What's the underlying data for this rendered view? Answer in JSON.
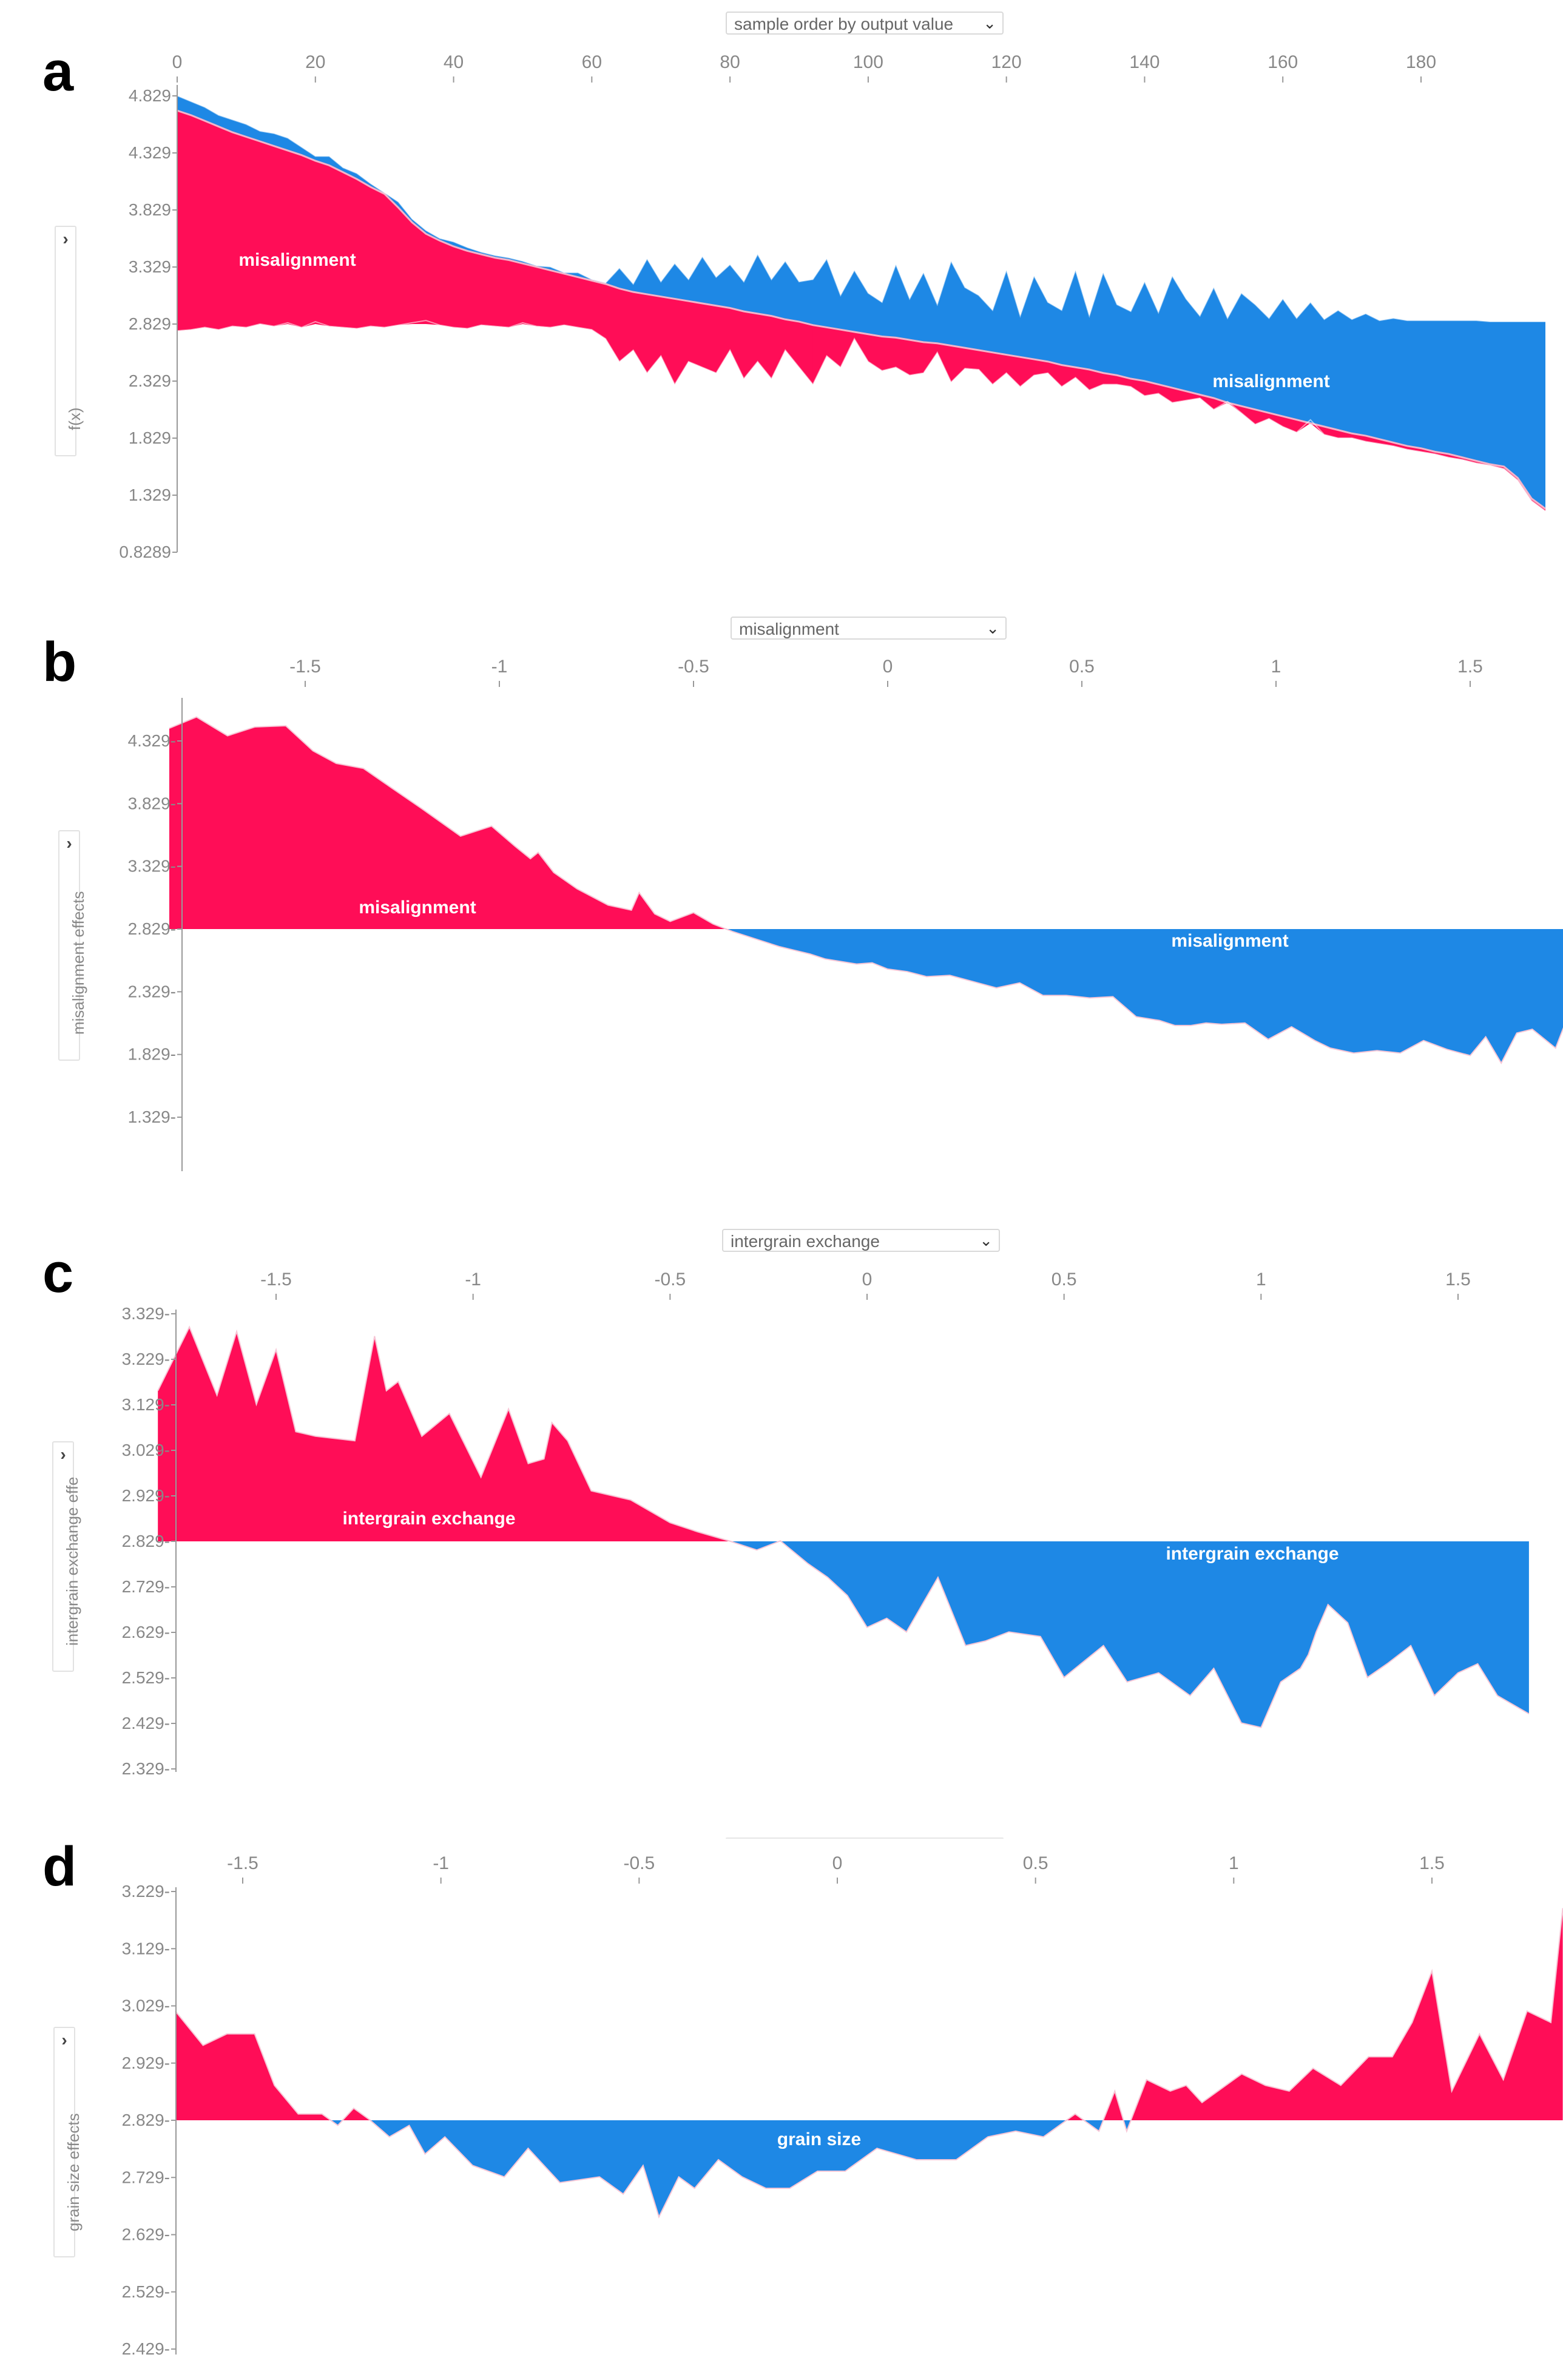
{
  "panels": [
    {
      "letter": "a",
      "dropdown": "sample order by output value",
      "ylabel": "f(x)"
    },
    {
      "letter": "b",
      "dropdown": "misalignment",
      "ylabel": "misalignment effects"
    },
    {
      "letter": "c",
      "dropdown": "intergrain exchange",
      "ylabel": "intergrain exchange effe"
    },
    {
      "letter": "d",
      "dropdown": "",
      "ylabel": "grain size effects"
    }
  ],
  "colors": {
    "positive": "#ff0d57",
    "negative": "#1e88e5",
    "axis": "#999999",
    "tick_text": "#888888"
  },
  "icons": {
    "expand": "chevron-right-icon",
    "dropdown": "chevron-down-icon"
  },
  "chart_data": [
    {
      "type": "area",
      "x": [
        0,
        2,
        4,
        6,
        8,
        10,
        12,
        14,
        16,
        18,
        20,
        22,
        24,
        26,
        28,
        30,
        32,
        34,
        36,
        38,
        40,
        42,
        44,
        46,
        48,
        50,
        52,
        54,
        56,
        58,
        60,
        62,
        64,
        66,
        68,
        70,
        72,
        74,
        76,
        78,
        80,
        82,
        84,
        86,
        88,
        90,
        92,
        94,
        96,
        98,
        100,
        102,
        104,
        106,
        108,
        110,
        112,
        114,
        116,
        118,
        120,
        122,
        124,
        126,
        128,
        130,
        132,
        134,
        136,
        138,
        140,
        142,
        144,
        146,
        148,
        150,
        152,
        154,
        156,
        158,
        160,
        162,
        164,
        166,
        168,
        170,
        172,
        174,
        176,
        178,
        180,
        182,
        184,
        186,
        188,
        190,
        192,
        194,
        196,
        198
      ],
      "output_values": [
        4.7,
        4.66,
        4.61,
        4.56,
        4.51,
        4.47,
        4.43,
        4.39,
        4.35,
        4.31,
        4.26,
        4.22,
        4.16,
        4.1,
        4.03,
        3.97,
        3.85,
        3.72,
        3.62,
        3.56,
        3.51,
        3.47,
        3.44,
        3.41,
        3.39,
        3.36,
        3.33,
        3.3,
        3.27,
        3.24,
        3.21,
        3.18,
        3.14,
        3.11,
        3.09,
        3.07,
        3.05,
        3.03,
        3.01,
        2.99,
        2.97,
        2.94,
        2.92,
        2.9,
        2.87,
        2.85,
        2.82,
        2.8,
        2.78,
        2.76,
        2.74,
        2.72,
        2.71,
        2.69,
        2.67,
        2.66,
        2.64,
        2.62,
        2.6,
        2.58,
        2.56,
        2.54,
        2.52,
        2.5,
        2.47,
        2.45,
        2.43,
        2.4,
        2.38,
        2.35,
        2.33,
        2.3,
        2.27,
        2.24,
        2.21,
        2.18,
        2.14,
        2.11,
        2.08,
        2.05,
        2.02,
        1.99,
        1.96,
        1.93,
        1.9,
        1.87,
        1.85,
        1.82,
        1.79,
        1.76,
        1.74,
        1.71,
        1.69,
        1.66,
        1.63,
        1.6,
        1.58,
        1.48,
        1.3,
        1.21
      ],
      "base_value": 2.829,
      "upper_envelope": [
        4.83,
        4.78,
        4.73,
        4.66,
        4.62,
        4.58,
        4.52,
        4.5,
        4.46,
        4.38,
        4.3,
        4.3,
        4.2,
        4.15,
        4.06,
        3.98,
        3.9,
        3.75,
        3.65,
        3.58,
        3.55,
        3.5,
        3.46,
        3.43,
        3.41,
        3.38,
        3.34,
        3.33,
        3.28,
        3.28,
        3.22,
        3.19,
        3.32,
        3.18,
        3.4,
        3.2,
        3.36,
        3.22,
        3.42,
        3.24,
        3.35,
        3.2,
        3.44,
        3.22,
        3.38,
        3.2,
        3.22,
        3.4,
        3.08,
        3.3,
        3.1,
        3.02,
        3.35,
        3.05,
        3.28,
        3.0,
        3.38,
        3.15,
        3.08,
        2.95,
        3.3,
        2.9,
        3.25,
        3.02,
        2.95,
        3.3,
        2.9,
        3.28,
        3.0,
        2.94,
        3.2,
        2.93,
        3.25,
        3.05,
        2.9,
        3.15,
        2.88,
        3.1,
        3.0,
        2.88,
        3.05,
        2.88,
        3.02,
        2.87,
        2.95,
        2.87,
        2.92,
        2.86,
        2.88,
        2.86,
        2.86,
        2.86,
        2.86,
        2.86,
        2.86,
        2.85,
        2.85,
        2.85,
        2.85,
        2.85
      ],
      "lower_envelope": [
        2.77,
        2.78,
        2.8,
        2.78,
        2.81,
        2.8,
        2.83,
        2.81,
        2.84,
        2.8,
        2.85,
        2.81,
        2.8,
        2.79,
        2.81,
        2.8,
        2.82,
        2.84,
        2.86,
        2.82,
        2.8,
        2.79,
        2.82,
        2.81,
        2.8,
        2.84,
        2.81,
        2.8,
        2.82,
        2.8,
        2.78,
        2.7,
        2.5,
        2.6,
        2.4,
        2.55,
        2.3,
        2.5,
        2.45,
        2.4,
        2.6,
        2.35,
        2.5,
        2.35,
        2.6,
        2.45,
        2.3,
        2.55,
        2.45,
        2.7,
        2.5,
        2.42,
        2.45,
        2.38,
        2.4,
        2.58,
        2.32,
        2.44,
        2.43,
        2.3,
        2.4,
        2.28,
        2.38,
        2.4,
        2.28,
        2.36,
        2.25,
        2.3,
        2.3,
        2.28,
        2.2,
        2.22,
        2.14,
        2.16,
        2.18,
        2.08,
        2.15,
        2.05,
        1.95,
        2.0,
        1.93,
        1.88,
        1.99,
        1.86,
        1.83,
        1.83,
        1.8,
        1.78,
        1.76,
        1.73,
        1.71,
        1.69,
        1.66,
        1.64,
        1.61,
        1.59,
        1.56,
        1.46,
        1.28,
        1.19
      ],
      "series_labels": [
        {
          "text": "misalignment"
        },
        {
          "text": "misalignment"
        }
      ],
      "xlabel": "",
      "ylabel": "f(x)",
      "xlim": [
        -2,
        199
      ],
      "ylim": [
        0.8289,
        4.929
      ],
      "xticks": [
        0,
        20,
        40,
        60,
        80,
        100,
        120,
        140,
        160,
        180
      ],
      "yticks": [
        4.829,
        4.329,
        3.829,
        3.329,
        2.829,
        2.329,
        1.829,
        1.329,
        0.8289
      ],
      "ytick_labels": [
        "4.829",
        "4.329",
        "3.829",
        "3.329",
        "2.829",
        "2.329",
        "1.829",
        "1.329",
        "0.8289"
      ]
    },
    {
      "type": "area",
      "x": [
        -1.85,
        -1.78,
        -1.7,
        -1.63,
        -1.55,
        -1.48,
        -1.42,
        -1.35,
        -1.28,
        -1.2,
        -1.1,
        -1.02,
        -0.96,
        -0.92,
        -0.9,
        -0.86,
        -0.8,
        -0.72,
        -0.66,
        -0.64,
        -0.6,
        -0.56,
        -0.5,
        -0.45,
        -0.4,
        -0.36,
        -0.32,
        -0.28,
        -0.24,
        -0.2,
        -0.16,
        -0.12,
        -0.08,
        -0.04,
        0.0,
        0.05,
        0.1,
        0.16,
        0.22,
        0.28,
        0.34,
        0.4,
        0.46,
        0.52,
        0.58,
        0.64,
        0.7,
        0.74,
        0.78,
        0.82,
        0.86,
        0.92,
        0.98,
        1.04,
        1.1,
        1.14,
        1.2,
        1.26,
        1.32,
        1.38,
        1.44,
        1.5,
        1.54,
        1.58,
        1.62,
        1.66,
        1.72,
        1.76
      ],
      "values": [
        4.43,
        4.52,
        4.37,
        4.44,
        4.45,
        4.25,
        4.15,
        4.11,
        3.96,
        3.79,
        3.57,
        3.65,
        3.49,
        3.39,
        3.44,
        3.28,
        3.15,
        3.02,
        2.98,
        3.12,
        2.95,
        2.89,
        2.96,
        2.87,
        2.81,
        2.77,
        2.73,
        2.69,
        2.66,
        2.63,
        2.59,
        2.57,
        2.55,
        2.56,
        2.51,
        2.49,
        2.45,
        2.46,
        2.41,
        2.36,
        2.4,
        2.3,
        2.3,
        2.28,
        2.29,
        2.13,
        2.1,
        2.06,
        2.06,
        2.08,
        2.07,
        2.08,
        1.95,
        2.05,
        1.94,
        1.88,
        1.84,
        1.86,
        1.84,
        1.94,
        1.87,
        1.82,
        1.97,
        1.76,
        2.0,
        2.03,
        1.88,
        2.2
      ],
      "base_value": 2.829,
      "series_labels": [
        {
          "text": "misalignment"
        },
        {
          "text": "misalignment"
        }
      ],
      "xlabel": "",
      "ylabel": "misalignment effects",
      "xlim": [
        -1.83,
        1.72
      ],
      "ylim": [
        0.95,
        4.7
      ],
      "xticks": [
        -1.5,
        -1,
        -0.5,
        0,
        0.5,
        1,
        1.5
      ],
      "yticks": [
        4.329,
        3.829,
        3.329,
        2.829,
        2.329,
        1.829,
        1.329
      ],
      "ytick_labels": [
        "4.329-",
        "3.829-",
        "3.329-",
        "2.829-",
        "2.329-",
        "1.829-",
        "1.329-"
      ]
    },
    {
      "type": "area",
      "x": [
        -1.8,
        -1.72,
        -1.65,
        -1.6,
        -1.55,
        -1.5,
        -1.45,
        -1.4,
        -1.3,
        -1.25,
        -1.22,
        -1.19,
        -1.13,
        -1.06,
        -0.98,
        -0.91,
        -0.86,
        -0.82,
        -0.8,
        -0.76,
        -0.7,
        -0.6,
        -0.5,
        -0.43,
        -0.35,
        -0.28,
        -0.22,
        -0.15,
        -0.1,
        -0.05,
        0.0,
        0.05,
        0.1,
        0.18,
        0.25,
        0.3,
        0.36,
        0.44,
        0.5,
        0.6,
        0.66,
        0.74,
        0.82,
        0.88,
        0.95,
        1.0,
        1.05,
        1.1,
        1.12,
        1.14,
        1.17,
        1.22,
        1.27,
        1.32,
        1.38,
        1.44,
        1.5,
        1.55,
        1.6,
        1.68
      ],
      "values": [
        3.16,
        3.3,
        3.15,
        3.29,
        3.13,
        3.25,
        3.07,
        3.06,
        3.05,
        3.28,
        3.16,
        3.18,
        3.06,
        3.11,
        2.97,
        3.12,
        3.0,
        3.01,
        3.09,
        3.05,
        2.94,
        2.92,
        2.87,
        2.85,
        2.83,
        2.81,
        2.83,
        2.78,
        2.75,
        2.71,
        2.64,
        2.66,
        2.63,
        2.75,
        2.6,
        2.61,
        2.63,
        2.62,
        2.53,
        2.6,
        2.52,
        2.54,
        2.49,
        2.55,
        2.43,
        2.42,
        2.52,
        2.55,
        2.58,
        2.63,
        2.69,
        2.65,
        2.53,
        2.56,
        2.6,
        2.49,
        2.54,
        2.56,
        2.49,
        2.45
      ],
      "base_value": 2.829,
      "series_labels": [
        {
          "text": "intergrain exchange"
        },
        {
          "text": "intergrain exchange"
        }
      ],
      "xlabel": "",
      "ylabel": "intergrain exchange effe",
      "xlim": [
        -1.87,
        1.72
      ],
      "ylim": [
        2.329,
        3.339
      ],
      "xticks": [
        -1.5,
        -1,
        -0.5,
        0,
        0.5,
        1,
        1.5
      ],
      "yticks": [
        3.329,
        3.229,
        3.129,
        3.029,
        2.929,
        2.829,
        2.729,
        2.629,
        2.529,
        2.429,
        2.329
      ],
      "ytick_labels": [
        "3.329-",
        "3.229-",
        "3.129-",
        "3.029-",
        "2.929-",
        "2.829-",
        "2.729-",
        "2.629-",
        "2.529-",
        "2.429-",
        "2.329-"
      ]
    },
    {
      "type": "area",
      "x": [
        -1.67,
        -1.6,
        -1.54,
        -1.47,
        -1.42,
        -1.36,
        -1.3,
        -1.26,
        -1.22,
        -1.18,
        -1.13,
        -1.08,
        -1.04,
        -0.99,
        -0.92,
        -0.84,
        -0.78,
        -0.7,
        -0.6,
        -0.54,
        -0.49,
        -0.45,
        -0.4,
        -0.36,
        -0.3,
        -0.24,
        -0.18,
        -0.12,
        -0.05,
        0.02,
        0.1,
        0.2,
        0.3,
        0.38,
        0.45,
        0.52,
        0.6,
        0.66,
        0.7,
        0.73,
        0.78,
        0.84,
        0.88,
        0.92,
        0.96,
        1.02,
        1.08,
        1.14,
        1.2,
        1.27,
        1.34,
        1.4,
        1.45,
        1.5,
        1.55,
        1.62,
        1.68,
        1.74,
        1.8,
        1.83
      ],
      "values": [
        3.02,
        2.96,
        2.98,
        2.98,
        2.89,
        2.84,
        2.84,
        2.82,
        2.85,
        2.83,
        2.8,
        2.82,
        2.77,
        2.8,
        2.75,
        2.73,
        2.78,
        2.72,
        2.73,
        2.7,
        2.75,
        2.66,
        2.73,
        2.71,
        2.76,
        2.73,
        2.71,
        2.71,
        2.74,
        2.74,
        2.78,
        2.76,
        2.76,
        2.8,
        2.81,
        2.8,
        2.84,
        2.81,
        2.88,
        2.81,
        2.9,
        2.88,
        2.89,
        2.86,
        2.88,
        2.91,
        2.89,
        2.88,
        2.92,
        2.89,
        2.94,
        2.94,
        3.0,
        3.09,
        2.88,
        2.98,
        2.9,
        3.02,
        3.0,
        3.2
      ],
      "base_value": 2.829,
      "series_labels": [
        {
          "text": "grain size"
        }
      ],
      "xlabel": "",
      "ylabel": "grain size effects",
      "xlim": [
        -1.84,
        1.82
      ],
      "ylim": [
        2.42,
        3.24
      ],
      "xticks": [
        -1.5,
        -1,
        -0.5,
        0,
        0.5,
        1,
        1.5
      ],
      "yticks": [
        3.229,
        3.129,
        3.029,
        2.929,
        2.829,
        2.729,
        2.629,
        2.529,
        2.429
      ],
      "ytick_labels": [
        "3.229-",
        "3.129-",
        "3.029-",
        "2.929-",
        "2.829-",
        "2.729-",
        "2.629-",
        "2.529-",
        "2.429-"
      ]
    }
  ]
}
